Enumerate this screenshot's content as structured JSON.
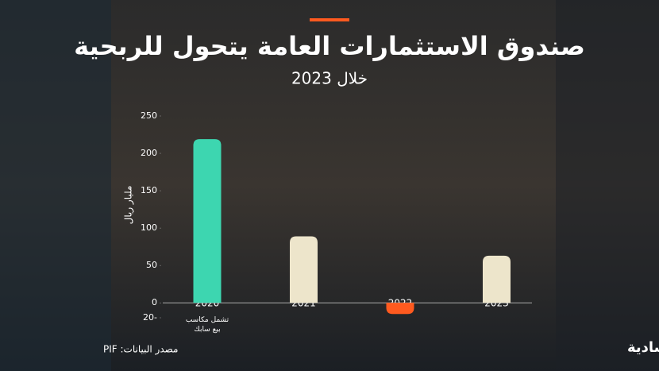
{
  "chart_data": {
    "type": "bar",
    "title": "صندوق الاستثمارات العامة يتحول للربحية",
    "subtitle": "خلال 2023",
    "y_label": "مليار ريال",
    "categories": [
      "2020",
      "2021",
      "2022",
      "2023"
    ],
    "values": [
      219,
      89,
      -15,
      63
    ],
    "colors": [
      "#3dd6b0",
      "#ede5cb",
      "#ff5a1f",
      "#ede5cb"
    ],
    "annotation": "تشمل مكاسب بيع سابك",
    "ylim": [
      -20,
      250
    ],
    "yticks": [
      {
        "value": -20,
        "label": "20-"
      },
      0,
      50,
      100,
      150,
      200,
      250
    ],
    "source": "مصدر البيانات: PIF",
    "brand": "الاقتصادية"
  }
}
